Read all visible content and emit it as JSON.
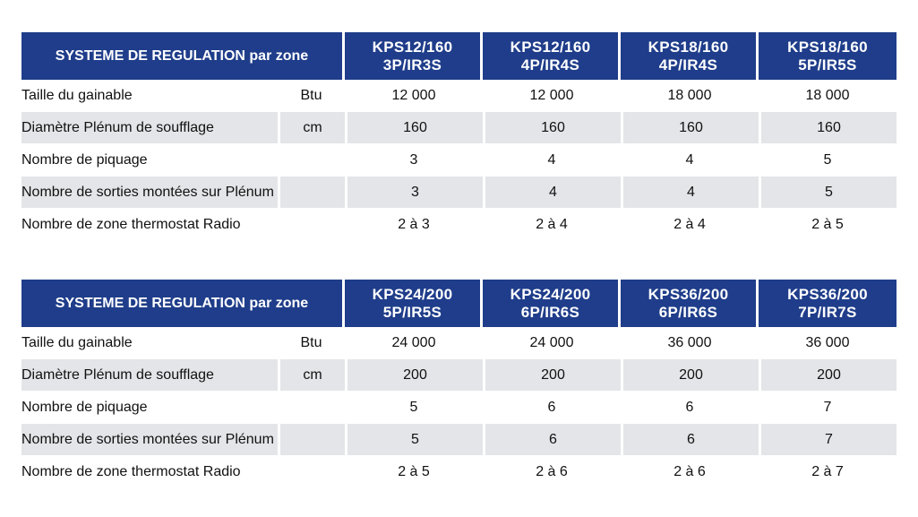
{
  "tables": [
    {
      "title": "SYSTEME DE REGULATION par zone",
      "models": [
        {
          "line1": "KPS12/160",
          "line2": "3P/IR3S"
        },
        {
          "line1": "KPS12/160",
          "line2": "4P/IR4S"
        },
        {
          "line1": "KPS18/160",
          "line2": "4P/IR4S"
        },
        {
          "line1": "KPS18/160",
          "line2": "5P/IR5S"
        }
      ],
      "rows": [
        {
          "label": "Taille du gainable",
          "unit": "Btu",
          "values": [
            "12 000",
            "12 000",
            "18 000",
            "18 000"
          ]
        },
        {
          "label": "Diamètre Plénum de soufflage",
          "unit": "cm",
          "values": [
            "160",
            "160",
            "160",
            "160"
          ]
        },
        {
          "label": "Nombre de piquage",
          "unit": "",
          "values": [
            "3",
            "4",
            "4",
            "5"
          ]
        },
        {
          "label": "Nombre de sorties montées sur Plénum",
          "unit": "",
          "values": [
            "3",
            "4",
            "4",
            "5"
          ]
        },
        {
          "label": "Nombre de zone thermostat Radio",
          "unit": "",
          "values": [
            "2 à 3",
            "2 à 4",
            "2 à 4",
            "2 à 5"
          ]
        }
      ]
    },
    {
      "title": "SYSTEME DE REGULATION par zone",
      "models": [
        {
          "line1": "KPS24/200",
          "line2": "5P/IR5S"
        },
        {
          "line1": "KPS24/200",
          "line2": "6P/IR6S"
        },
        {
          "line1": "KPS36/200",
          "line2": "6P/IR6S"
        },
        {
          "line1": "KPS36/200",
          "line2": "7P/IR7S"
        }
      ],
      "rows": [
        {
          "label": "Taille du gainable",
          "unit": "Btu",
          "values": [
            "24 000",
            "24 000",
            "36 000",
            "36 000"
          ]
        },
        {
          "label": "Diamètre Plénum de soufflage",
          "unit": "cm",
          "values": [
            "200",
            "200",
            "200",
            "200"
          ]
        },
        {
          "label": "Nombre de piquage",
          "unit": "",
          "values": [
            "5",
            "6",
            "6",
            "7"
          ]
        },
        {
          "label": "Nombre de sorties montées sur Plénum",
          "unit": "",
          "values": [
            "5",
            "6",
            "6",
            "7"
          ]
        },
        {
          "label": "Nombre de zone thermostat Radio",
          "unit": "",
          "values": [
            "2 à 5",
            "2 à 6",
            "2 à 6",
            "2 à 7"
          ]
        }
      ]
    }
  ],
  "colors": {
    "header": "#1f3d8a",
    "shaded_row": "#e3e5e8"
  }
}
